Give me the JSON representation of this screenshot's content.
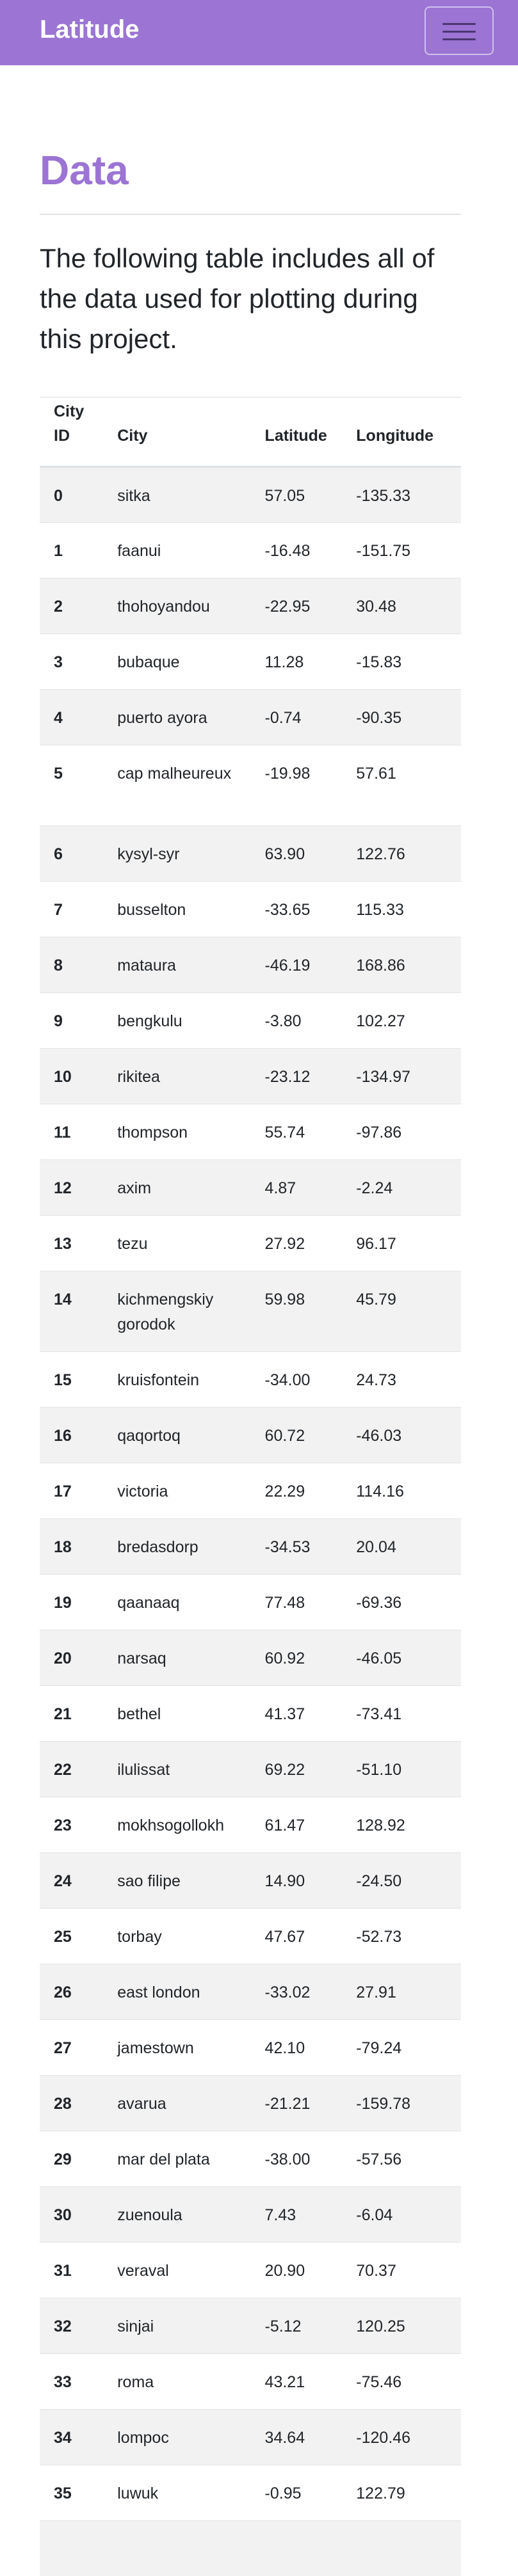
{
  "navbar": {
    "brand": "Latitude",
    "toggle_icon": "hamburger-menu-icon",
    "color": "#9b74d4"
  },
  "page": {
    "title": "Data",
    "lead": "The following table includes all of the data used for plotting during this project.",
    "accent_color": "#9b74d4"
  },
  "table": {
    "headers": [
      "City ID",
      "City",
      "Latitude",
      "Longitude"
    ],
    "rows": [
      {
        "id": "0",
        "city": "sitka",
        "lat": "57.05",
        "lon": "-135.33"
      },
      {
        "id": "1",
        "city": "faanui",
        "lat": "-16.48",
        "lon": "-151.75"
      },
      {
        "id": "2",
        "city": "thohoyandou",
        "lat": "-22.95",
        "lon": "30.48"
      },
      {
        "id": "3",
        "city": "bubaque",
        "lat": "11.28",
        "lon": "-15.83"
      },
      {
        "id": "4",
        "city": "puerto ayora",
        "lat": "-0.74",
        "lon": "-90.35"
      },
      {
        "id": "5",
        "city": "cap malheureux",
        "lat": "-19.98",
        "lon": "57.61"
      },
      {
        "id": "6",
        "city": "kysyl-syr",
        "lat": "63.90",
        "lon": "122.76"
      },
      {
        "id": "7",
        "city": "busselton",
        "lat": "-33.65",
        "lon": "115.33"
      },
      {
        "id": "8",
        "city": "mataura",
        "lat": "-46.19",
        "lon": "168.86"
      },
      {
        "id": "9",
        "city": "bengkulu",
        "lat": "-3.80",
        "lon": "102.27"
      },
      {
        "id": "10",
        "city": "rikitea",
        "lat": "-23.12",
        "lon": "-134.97"
      },
      {
        "id": "11",
        "city": "thompson",
        "lat": "55.74",
        "lon": "-97.86"
      },
      {
        "id": "12",
        "city": "axim",
        "lat": "4.87",
        "lon": "-2.24"
      },
      {
        "id": "13",
        "city": "tezu",
        "lat": "27.92",
        "lon": "96.17"
      },
      {
        "id": "14",
        "city": "kichmengskiy gorodok",
        "lat": "59.98",
        "lon": "45.79"
      },
      {
        "id": "15",
        "city": "kruisfontein",
        "lat": "-34.00",
        "lon": "24.73"
      },
      {
        "id": "16",
        "city": "qaqortoq",
        "lat": "60.72",
        "lon": "-46.03"
      },
      {
        "id": "17",
        "city": "victoria",
        "lat": "22.29",
        "lon": "114.16"
      },
      {
        "id": "18",
        "city": "bredasdorp",
        "lat": "-34.53",
        "lon": "20.04"
      },
      {
        "id": "19",
        "city": "qaanaaq",
        "lat": "77.48",
        "lon": "-69.36"
      },
      {
        "id": "20",
        "city": "narsaq",
        "lat": "60.92",
        "lon": "-46.05"
      },
      {
        "id": "21",
        "city": "bethel",
        "lat": "41.37",
        "lon": "-73.41"
      },
      {
        "id": "22",
        "city": "ilulissat",
        "lat": "69.22",
        "lon": "-51.10"
      },
      {
        "id": "23",
        "city": "mokhsogollokh",
        "lat": "61.47",
        "lon": "128.92"
      },
      {
        "id": "24",
        "city": "sao filipe",
        "lat": "14.90",
        "lon": "-24.50"
      },
      {
        "id": "25",
        "city": "torbay",
        "lat": "47.67",
        "lon": "-52.73"
      },
      {
        "id": "26",
        "city": "east london",
        "lat": "-33.02",
        "lon": "27.91"
      },
      {
        "id": "27",
        "city": "jamestown",
        "lat": "42.10",
        "lon": "-79.24"
      },
      {
        "id": "28",
        "city": "avarua",
        "lat": "-21.21",
        "lon": "-159.78"
      },
      {
        "id": "29",
        "city": "mar del plata",
        "lat": "-38.00",
        "lon": "-57.56"
      },
      {
        "id": "30",
        "city": "zuenoula",
        "lat": "7.43",
        "lon": "-6.04"
      },
      {
        "id": "31",
        "city": "veraval",
        "lat": "20.90",
        "lon": "70.37"
      },
      {
        "id": "32",
        "city": "sinjai",
        "lat": "-5.12",
        "lon": "120.25"
      },
      {
        "id": "33",
        "city": "roma",
        "lat": "43.21",
        "lon": "-75.46"
      },
      {
        "id": "34",
        "city": "lompoc",
        "lat": "34.64",
        "lon": "-120.46"
      },
      {
        "id": "35",
        "city": "luwuk",
        "lat": "-0.95",
        "lon": "122.79"
      },
      {
        "id": "",
        "city": "",
        "lat": "",
        "lon": ""
      }
    ]
  }
}
